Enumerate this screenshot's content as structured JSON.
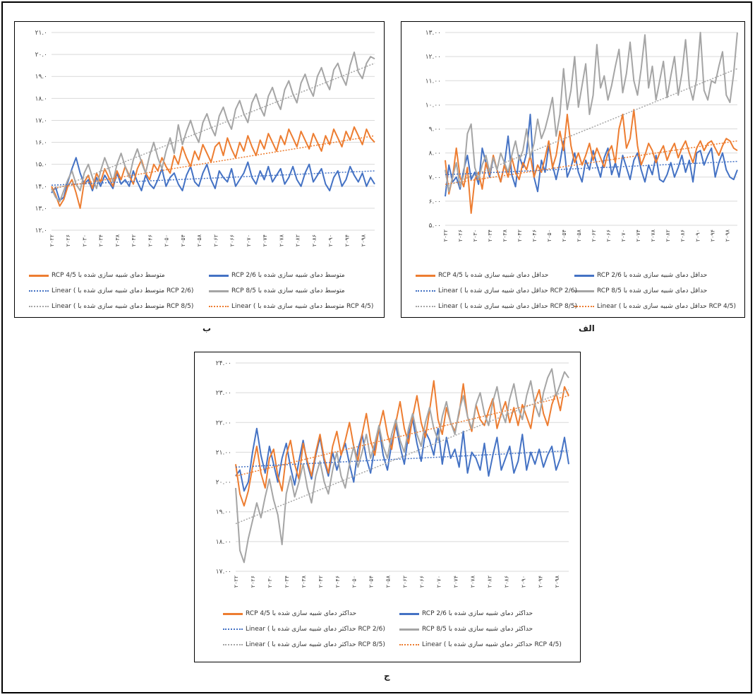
{
  "labels": {
    "b": "ب",
    "alef": "الف",
    "jim": "ج"
  },
  "colors": {
    "rcp26": "#4472c4",
    "rcp45": "#ed7d31",
    "rcp85": "#a5a5a5"
  },
  "chart_data": [
    {
      "id": "b",
      "type": "line",
      "ylim": [
        12,
        21
      ],
      "yticks": [
        "۱۲.۰",
        "۱۳.۰",
        "۱۴.۰",
        "۱۵.۰",
        "۱۶.۰",
        "۱۷.۰",
        "۱۸.۰",
        "۱۹.۰",
        "۲۰.۰",
        "۲۱.۰"
      ],
      "xticks": [
        "۲۰۲۲",
        "۲۰۲۶",
        "۲۰۳۰",
        "۲۰۳۴",
        "۲۰۳۸",
        "۲۰۴۲",
        "۲۰۴۶",
        "۲۰۵۰",
        "۲۰۵۴",
        "۲۰۵۸",
        "۲۰۶۲",
        "۲۰۶۶",
        "۲۰۷۰",
        "۲۰۷۴",
        "۲۰۷۸",
        "۲۰۸۲",
        "۲۰۸۶",
        "۲۰۹۰",
        "۲۰۹۴",
        "۲۰۹۸"
      ],
      "x_start": 2022,
      "x_end": 2100,
      "series": [
        {
          "name": "متوسط دمای شبیه سازی شده با RCP 2/6",
          "color": "#4472c4",
          "values": [
            13.7,
            13.95,
            13.35,
            13.5,
            14.2,
            14.8,
            15.3,
            14.6,
            14.1,
            14.3,
            13.8,
            14.4,
            14.0,
            14.5,
            14.2,
            13.9,
            14.6,
            14.1,
            14.3,
            14.0,
            14.7,
            14.2,
            13.8,
            14.5,
            14.1,
            13.9,
            14.3,
            14.8,
            14.0,
            14.4,
            14.6,
            14.1,
            13.8,
            14.5,
            14.9,
            14.2,
            14.0,
            14.6,
            15.0,
            14.3,
            13.9,
            14.7,
            14.4,
            14.2,
            14.8,
            14.0,
            14.3,
            14.6,
            15.1,
            14.4,
            14.1,
            14.7,
            14.3,
            14.9,
            14.2,
            14.5,
            14.8,
            14.1,
            14.4,
            14.9,
            14.3,
            14.0,
            14.6,
            15.0,
            14.2,
            14.5,
            14.8,
            14.1,
            13.8,
            14.4,
            14.7,
            14.0,
            14.3,
            14.9,
            14.5,
            14.2,
            14.6,
            14.0,
            14.4,
            14.1
          ]
        },
        {
          "name": "متوسط دمای شبیه سازی شده با RCP 4/5",
          "color": "#ed7d31",
          "values": [
            14.0,
            13.6,
            13.1,
            13.4,
            14.0,
            14.3,
            13.7,
            13.0,
            14.2,
            14.5,
            13.9,
            14.6,
            14.2,
            14.8,
            14.4,
            14.0,
            14.7,
            14.3,
            14.9,
            14.5,
            14.1,
            14.8,
            15.2,
            14.6,
            14.3,
            15.0,
            14.7,
            15.3,
            14.9,
            14.6,
            15.4,
            15.0,
            15.8,
            15.3,
            14.9,
            15.6,
            15.2,
            15.9,
            15.5,
            15.1,
            15.8,
            16.0,
            15.4,
            16.2,
            15.7,
            15.3,
            16.0,
            15.6,
            16.3,
            15.8,
            15.4,
            16.1,
            15.7,
            16.4,
            16.0,
            15.6,
            16.3,
            15.9,
            16.6,
            16.2,
            15.8,
            16.5,
            16.1,
            15.7,
            16.4,
            16.0,
            15.6,
            16.3,
            15.9,
            16.6,
            16.2,
            15.8,
            16.5,
            16.1,
            16.7,
            16.3,
            15.9,
            16.6,
            16.2,
            16.0
          ]
        },
        {
          "name": "متوسط دمای شبیه سازی شده با RCP 8/5",
          "color": "#a5a5a5",
          "values": [
            13.9,
            13.5,
            13.3,
            13.8,
            14.3,
            14.7,
            14.1,
            13.8,
            14.6,
            15.0,
            14.4,
            13.9,
            14.7,
            15.3,
            14.8,
            14.2,
            15.0,
            15.5,
            14.9,
            14.4,
            15.2,
            15.7,
            15.1,
            14.6,
            15.4,
            16.0,
            15.3,
            14.8,
            15.6,
            16.2,
            15.5,
            16.8,
            15.9,
            16.5,
            17.0,
            16.4,
            16.0,
            16.9,
            17.3,
            16.7,
            16.3,
            17.2,
            17.6,
            17.0,
            16.6,
            17.5,
            17.9,
            17.3,
            16.9,
            17.8,
            18.2,
            17.6,
            17.2,
            18.1,
            18.5,
            17.9,
            17.5,
            18.4,
            18.8,
            18.2,
            17.8,
            18.7,
            19.1,
            18.5,
            18.1,
            19.0,
            19.4,
            18.8,
            18.4,
            19.3,
            19.6,
            19.0,
            18.6,
            19.5,
            20.1,
            19.2,
            18.9,
            19.6,
            19.9,
            19.8
          ]
        }
      ],
      "trends": [
        {
          "name": "Linear (متوسط دمای شبیه سازی شده با RCP 2/6)",
          "color": "#4472c4",
          "from": 14.05,
          "to": 14.7
        },
        {
          "name": "Linear (متوسط دمای شبیه سازی شده با RCP 4/5)",
          "color": "#ed7d31",
          "from": 13.9,
          "to": 16.3
        },
        {
          "name": "Linear (متوسط دمای شبیه سازی شده با RCP 8/5)",
          "color": "#a5a5a5",
          "from": 13.8,
          "to": 19.6
        }
      ],
      "legend_labels": [
        "متوسط دمای شبیه سازی شده با RCP 2/6",
        "متوسط دمای شبیه سازی شده با RCP 4/5",
        "متوسط دمای شبیه سازی شده با RCP 8/5",
        "Linear ( متوسط دمای شبیه سازی شده با RCP 2/6)",
        "Linear ( متوسط دمای شبیه سازی شده با RCP 4/5)",
        "Linear ( متوسط دمای شبیه سازی شده با RCP 8/5)"
      ]
    },
    {
      "id": "alef",
      "type": "line",
      "ylim": [
        5,
        13
      ],
      "yticks": [
        "۵.۰۰",
        "۶.۰۰",
        "۷.۰۰",
        "۸.۰۰",
        "۹.۰۰",
        "۱۰.۰۰",
        "۱۱.۰۰",
        "۱۲.۰۰",
        "۱۳.۰۰"
      ],
      "xticks": [
        "۲۰۲۲",
        "۲۰۲۶",
        "۲۰۳۰",
        "۲۰۳۴",
        "۲۰۳۸",
        "۲۰۴۲",
        "۲۰۴۶",
        "۲۰۵۰",
        "۲۰۵۴",
        "۲۰۵۸",
        "۲۰۶۲",
        "۲۰۶۶",
        "۲۰۷۰",
        "۲۰۷۴",
        "۲۰۷۸",
        "۲۰۸۲",
        "۲۰۸۶",
        "۲۰۹۰",
        "۲۰۹۴",
        "۲۰۹۸"
      ],
      "x_start": 2022,
      "x_end": 2100,
      "series": [
        {
          "name": "حداقل دمای شبیه سازی شده با RCP 2/6",
          "color": "#4472c4",
          "values": [
            6.2,
            7.5,
            6.8,
            7.0,
            6.5,
            7.3,
            7.9,
            6.9,
            7.2,
            6.7,
            8.2,
            7.6,
            7.0,
            7.8,
            7.3,
            6.8,
            7.5,
            8.7,
            7.1,
            6.6,
            7.9,
            7.4,
            8.0,
            9.6,
            7.0,
            6.4,
            7.7,
            7.2,
            8.3,
            7.5,
            6.9,
            7.6,
            8.5,
            7.0,
            7.4,
            8.0,
            7.2,
            6.8,
            7.7,
            7.3,
            8.1,
            7.5,
            7.0,
            7.8,
            8.2,
            7.1,
            7.6,
            7.0,
            7.9,
            7.4,
            6.9,
            7.7,
            8.0,
            7.3,
            6.8,
            7.5,
            7.1,
            7.9,
            6.9,
            6.8,
            7.1,
            7.6,
            7.0,
            7.4,
            7.9,
            7.2,
            7.7,
            6.8,
            8.0,
            8.1,
            7.5,
            7.9,
            8.2,
            7.0,
            7.6,
            8.0,
            7.3,
            7.0,
            6.9,
            7.3
          ]
        },
        {
          "name": "حداقل دمای شبیه سازی شده با RCP 4/5",
          "color": "#ed7d31",
          "values": [
            7.7,
            6.3,
            7.0,
            8.2,
            7.0,
            6.6,
            7.4,
            5.5,
            6.9,
            7.2,
            6.5,
            7.6,
            7.1,
            7.9,
            7.3,
            6.8,
            7.5,
            7.0,
            7.8,
            7.2,
            6.9,
            7.6,
            7.3,
            7.9,
            7.0,
            7.5,
            7.2,
            7.8,
            8.5,
            7.4,
            7.9,
            8.9,
            8.1,
            9.6,
            8.3,
            7.6,
            8.0,
            7.5,
            7.9,
            8.4,
            7.7,
            8.2,
            7.8,
            7.4,
            8.0,
            8.3,
            7.6,
            9.0,
            9.6,
            8.2,
            8.6,
            9.8,
            8.3,
            7.5,
            7.9,
            8.4,
            8.1,
            7.6,
            8.0,
            8.3,
            7.7,
            8.1,
            8.4,
            7.8,
            8.2,
            8.5,
            8.0,
            7.6,
            8.2,
            8.5,
            8.1,
            8.4,
            8.5,
            8.2,
            7.9,
            8.3,
            8.6,
            8.5,
            8.2,
            8.1
          ]
        },
        {
          "name": "حداقل دمای شبیه سازی شده با RCP 8/5",
          "color": "#a5a5a5",
          "values": [
            7.3,
            6.4,
            7.0,
            7.6,
            6.6,
            7.1,
            8.8,
            9.2,
            7.4,
            6.9,
            7.5,
            7.9,
            7.2,
            7.8,
            7.3,
            8.0,
            7.6,
            7.2,
            7.9,
            8.5,
            7.7,
            8.1,
            9.0,
            7.8,
            8.4,
            9.4,
            8.6,
            9.0,
            9.6,
            10.3,
            8.7,
            9.6,
            11.5,
            9.8,
            10.6,
            12.0,
            9.9,
            10.8,
            11.7,
            9.6,
            10.4,
            12.5,
            10.7,
            11.2,
            10.2,
            10.8,
            11.6,
            12.3,
            10.5,
            11.3,
            12.6,
            11.0,
            10.4,
            11.5,
            12.9,
            10.7,
            11.6,
            10.2,
            11.0,
            11.8,
            10.3,
            11.2,
            12.0,
            10.4,
            11.3,
            12.7,
            10.8,
            10.2,
            11.1,
            13.0,
            10.6,
            10.2,
            11.0,
            10.9,
            11.6,
            12.2,
            10.4,
            10.1,
            11.3,
            13.0
          ]
        }
      ],
      "trends": [
        {
          "name": "Linear (حداقل دمای شبیه سازی شده با RCP 2/6)",
          "color": "#4472c4",
          "from": 7.1,
          "to": 7.65
        },
        {
          "name": "Linear (حداقل دمای شبیه سازی شده با RCP 4/5)",
          "color": "#ed7d31",
          "from": 6.7,
          "to": 8.5
        },
        {
          "name": "Linear (حداقل دمای شبیه سازی شده با RCP 8/5)",
          "color": "#a5a5a5",
          "from": 6.6,
          "to": 11.5
        }
      ],
      "legend_labels": [
        "حداقل دمای شبیه سازی شده با RCP 2/6",
        "حداقل دمای شبیه سازی شده با RCP 4/5",
        "حداقل دمای شبیه سازی شده با RCP 8/5",
        "Linear ( حداقل دمای شبیه سازی شده با RCP 2/6)",
        "Linear ( حداقل دمای شبیه سازی شده با RCP 4/5)",
        "Linear ( حداقل دمای شبیه سازی شده با RCP 8/5)"
      ]
    },
    {
      "id": "jim",
      "type": "line",
      "ylim": [
        17,
        24
      ],
      "yticks": [
        "۱۷.۰۰",
        "۱۸.۰۰",
        "۱۹.۰۰",
        "۲۰.۰۰",
        "۲۱.۰۰",
        "۲۲.۰۰",
        "۲۳.۰۰",
        "۲۴.۰۰"
      ],
      "xticks": [
        "۲۰۲۲",
        "۲۰۲۶",
        "۲۰۳۰",
        "۲۰۳۴",
        "۲۰۳۸",
        "۲۰۴۲",
        "۲۰۴۶",
        "۲۰۵۰",
        "۲۰۵۴",
        "۲۰۵۸",
        "۲۰۶۲",
        "۲۰۶۶",
        "۲۰۷۰",
        "۲۰۷۴",
        "۲۰۷۸",
        "۲۰۸۲",
        "۲۰۸۶",
        "۲۰۹۰",
        "۲۰۹۴",
        "۲۰۹۸"
      ],
      "x_start": 2022,
      "x_end": 2100,
      "series": [
        {
          "name": "حداکثر دمای شبیه سازی شده با RCP 2/6",
          "color": "#4472c4",
          "values": [
            20.2,
            20.4,
            19.7,
            20.0,
            21.0,
            21.8,
            20.9,
            20.3,
            21.2,
            20.6,
            20.0,
            20.8,
            21.3,
            20.5,
            19.9,
            20.7,
            21.4,
            20.6,
            20.1,
            20.9,
            21.5,
            20.7,
            20.2,
            21.0,
            20.4,
            20.9,
            21.3,
            20.6,
            20.0,
            21.1,
            21.6,
            20.8,
            20.3,
            21.2,
            21.8,
            20.9,
            20.4,
            21.3,
            21.9,
            21.2,
            20.6,
            21.6,
            22.1,
            21.3,
            20.7,
            21.7,
            21.4,
            20.9,
            21.8,
            20.6,
            21.5,
            20.8,
            21.1,
            20.5,
            21.7,
            20.3,
            21.0,
            20.8,
            20.4,
            21.3,
            20.2,
            20.9,
            21.5,
            20.4,
            20.8,
            21.2,
            20.3,
            20.7,
            21.6,
            20.4,
            21.0,
            20.6,
            21.1,
            20.5,
            20.9,
            21.2,
            20.4,
            20.8,
            21.5,
            20.6
          ]
        },
        {
          "name": "حداکثر دمای شبیه سازی شده با RCP 4/5",
          "color": "#ed7d31",
          "values": [
            20.6,
            19.6,
            19.2,
            19.7,
            20.5,
            21.2,
            20.3,
            19.8,
            20.8,
            21.1,
            20.2,
            19.7,
            20.9,
            21.4,
            20.6,
            20.1,
            21.3,
            20.7,
            20.2,
            21.0,
            21.6,
            20.8,
            20.3,
            21.2,
            21.7,
            20.9,
            21.4,
            22.0,
            21.2,
            20.7,
            21.6,
            22.3,
            21.4,
            20.9,
            21.8,
            22.4,
            21.6,
            21.1,
            22.0,
            22.7,
            21.8,
            21.3,
            22.2,
            22.9,
            22.0,
            21.5,
            22.4,
            23.4,
            22.1,
            21.6,
            22.5,
            22.0,
            21.7,
            22.3,
            23.3,
            22.2,
            21.7,
            22.6,
            22.1,
            21.9,
            22.4,
            22.8,
            21.8,
            22.3,
            22.7,
            22.0,
            22.5,
            21.9,
            22.6,
            22.2,
            21.8,
            22.7,
            23.1,
            22.3,
            21.9,
            22.6,
            23.0,
            22.4,
            23.2,
            22.9
          ]
        },
        {
          "name": "حداکثر دمای شبیه سازی شده با RCP 8/5",
          "color": "#a5a5a5",
          "values": [
            19.8,
            17.7,
            17.3,
            18.1,
            18.7,
            19.3,
            18.8,
            19.5,
            20.1,
            19.4,
            18.9,
            17.9,
            19.6,
            20.2,
            19.5,
            20.0,
            20.6,
            19.8,
            19.3,
            20.2,
            20.7,
            20.0,
            19.6,
            20.4,
            21.0,
            20.2,
            19.8,
            20.6,
            21.2,
            20.5,
            21.0,
            21.6,
            20.8,
            21.3,
            21.9,
            21.2,
            20.8,
            21.6,
            22.1,
            21.4,
            21.0,
            21.8,
            22.3,
            21.6,
            21.2,
            22.0,
            22.5,
            21.8,
            21.4,
            22.2,
            22.7,
            22.0,
            21.6,
            22.4,
            22.9,
            22.2,
            21.8,
            22.6,
            23.0,
            22.3,
            21.9,
            22.7,
            23.2,
            22.4,
            22.0,
            22.8,
            23.3,
            22.5,
            22.1,
            22.9,
            23.4,
            22.6,
            22.2,
            23.0,
            23.5,
            23.8,
            22.9,
            23.3,
            23.7,
            23.5
          ]
        }
      ],
      "trends": [
        {
          "name": "Linear (حداکثر دمای شبیه سازی شده با RCP 2/6)",
          "color": "#4472c4",
          "from": 20.5,
          "to": 21.05
        },
        {
          "name": "Linear (حداکثر دمای شبیه سازی شده با RCP 4/5)",
          "color": "#ed7d31",
          "from": 20.2,
          "to": 22.9
        },
        {
          "name": "Linear (حداکثر دمای شبیه سازی شده با RCP 8/5)",
          "color": "#a5a5a5",
          "from": 18.6,
          "to": 23.1
        }
      ],
      "legend_labels": [
        "حداکثر دمای شبیه سازی شده با RCP 2/6",
        "حداکثر دمای شبیه سازی شده با RCP 4/5",
        "حداکثر دمای شبیه سازی شده با RCP 8/5",
        "Linear ( حداکثر دمای شبیه سازی شده با RCP 2/6)",
        "Linear ( حداکثر دمای شبیه سازی شده با RCP 4/5)",
        "Linear ( حداکثر دمای شبیه سازی شده با RCP 8/5)"
      ]
    }
  ]
}
